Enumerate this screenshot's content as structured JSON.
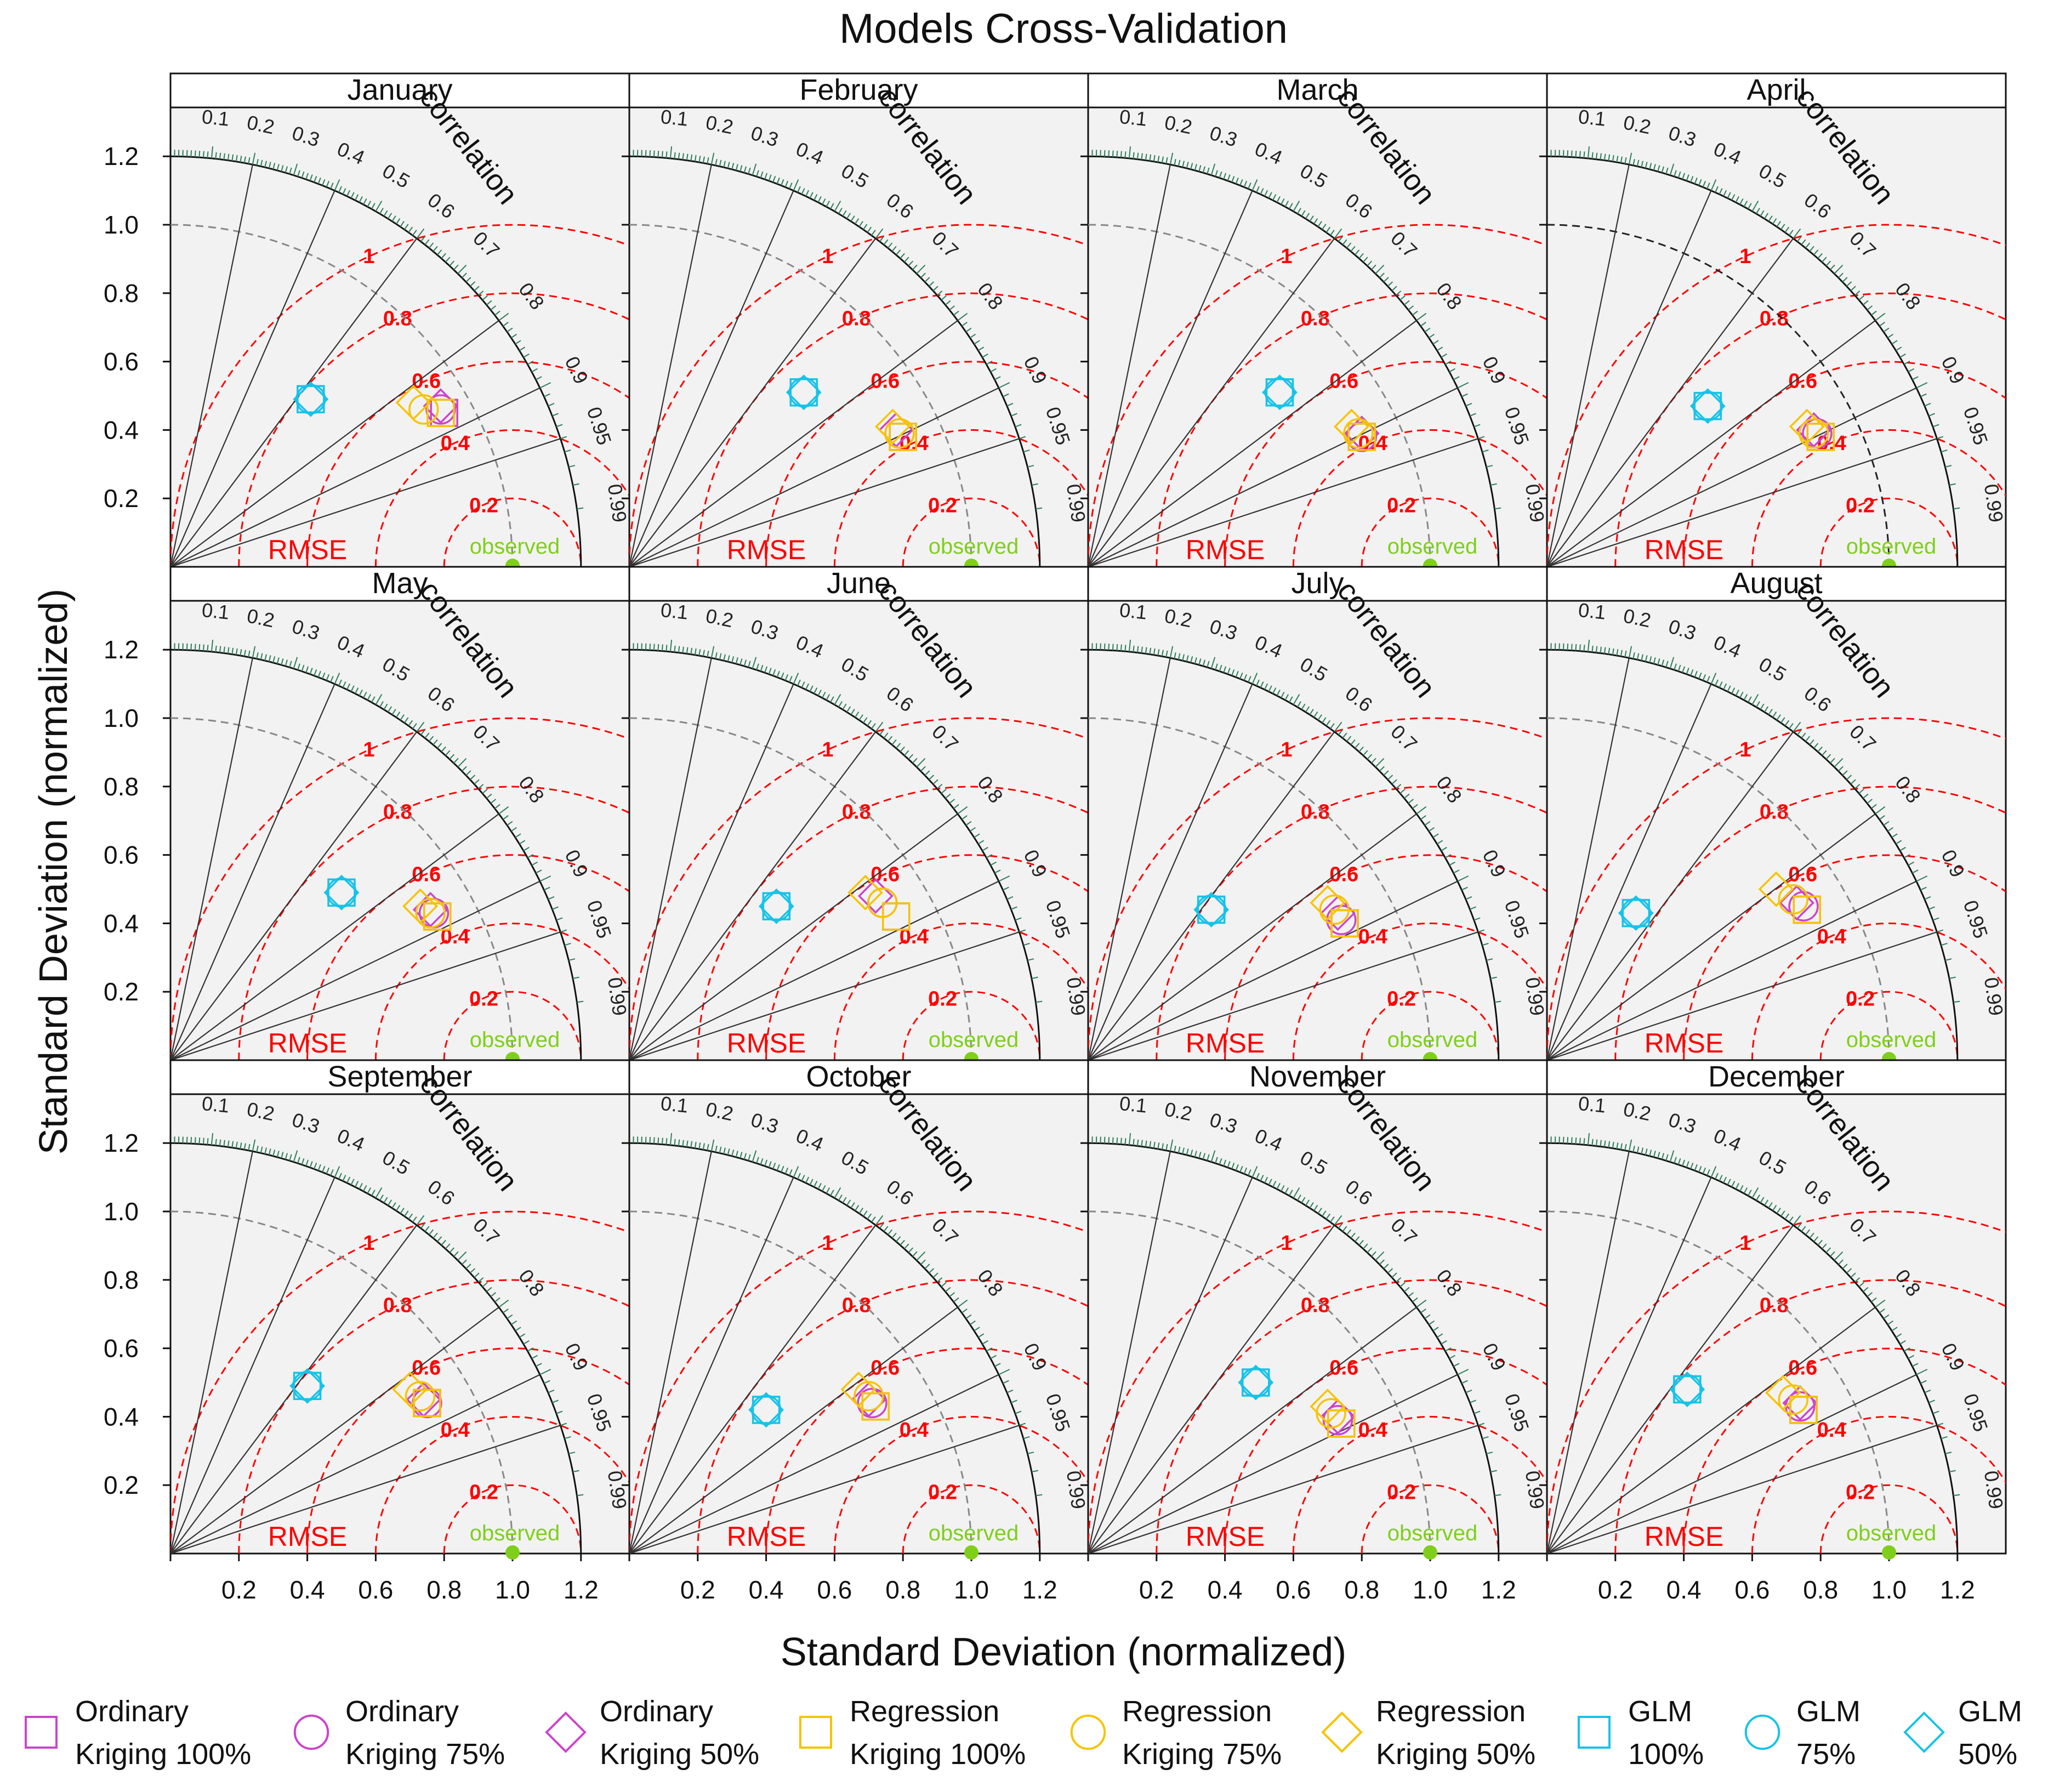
{
  "chart_data": {
    "type": "taylor",
    "title": "Models Cross-Validation",
    "xlabel": "Standard Deviation (normalized)",
    "ylabel": "Standard Deviation (normalized)",
    "xlim": [
      0,
      1.35
    ],
    "ylim": [
      0,
      1.35
    ],
    "x_ticks": [
      "0.2",
      "0.4",
      "0.6",
      "0.8",
      "1.0",
      "1.2"
    ],
    "y_ticks": [
      "0.2",
      "0.4",
      "0.6",
      "0.8",
      "1.0",
      "1.2"
    ],
    "correlation_label": "correlation",
    "correlation_ticks": [
      "0.1",
      "0.2",
      "0.3",
      "0.4",
      "0.5",
      "0.6",
      "0.7",
      "0.8",
      "0.9",
      "0.95",
      "0.99"
    ],
    "rmse_label": "RMSE",
    "rmse_ticks": [
      "0.2",
      "0.4",
      "0.6",
      "0.8",
      "1"
    ],
    "observed_label": "observed",
    "colors": {
      "ordinary": "#cc44cc",
      "regression": "#f5c400",
      "glm": "#17c3e8",
      "rmse": "#ff0000",
      "observed": "#7fcf1a",
      "panel_bg": "#f2f2f2"
    },
    "legend": [
      {
        "line1": "Ordinary",
        "line2": "Kriging 100%",
        "marker": "square",
        "color": "#cc44cc"
      },
      {
        "line1": "Ordinary",
        "line2": "Kriging 75%",
        "marker": "circle",
        "color": "#cc44cc"
      },
      {
        "line1": "Ordinary",
        "line2": "Kriging 50%",
        "marker": "diamond",
        "color": "#cc44cc"
      },
      {
        "line1": "Regression",
        "line2": "Kriging 100%",
        "marker": "square",
        "color": "#f5c400"
      },
      {
        "line1": "Regression",
        "line2": "Kriging 75%",
        "marker": "circle",
        "color": "#f5c400"
      },
      {
        "line1": "Regression",
        "line2": "Kriging 50%",
        "marker": "diamond",
        "color": "#f5c400"
      },
      {
        "line1": "GLM",
        "line2": "100%",
        "marker": "square",
        "color": "#17c3e8"
      },
      {
        "line1": "GLM",
        "line2": "75%",
        "marker": "circle",
        "color": "#17c3e8"
      },
      {
        "line1": "GLM",
        "line2": "50%",
        "marker": "diamond",
        "color": "#17c3e8"
      }
    ],
    "panels": [
      {
        "title": "January",
        "points": [
          [
            0.8,
            0.45
          ],
          [
            0.79,
            0.46
          ],
          [
            0.79,
            0.47
          ],
          [
            0.79,
            0.45
          ],
          [
            0.74,
            0.46
          ],
          [
            0.71,
            0.48
          ],
          [
            0.41,
            0.49
          ],
          [
            0.41,
            0.49
          ],
          [
            0.41,
            0.49
          ]
        ]
      },
      {
        "title": "February",
        "points": [
          [
            0.8,
            0.38
          ],
          [
            0.79,
            0.39
          ],
          [
            0.78,
            0.4
          ],
          [
            0.8,
            0.38
          ],
          [
            0.79,
            0.39
          ],
          [
            0.77,
            0.41
          ],
          [
            0.51,
            0.51
          ],
          [
            0.51,
            0.51
          ],
          [
            0.51,
            0.51
          ]
        ]
      },
      {
        "title": "March",
        "points": [
          [
            0.8,
            0.38
          ],
          [
            0.8,
            0.38
          ],
          [
            0.8,
            0.39
          ],
          [
            0.8,
            0.38
          ],
          [
            0.79,
            0.39
          ],
          [
            0.77,
            0.41
          ],
          [
            0.56,
            0.51
          ],
          [
            0.56,
            0.51
          ],
          [
            0.56,
            0.51
          ]
        ]
      },
      {
        "title": "April",
        "points": [
          [
            0.8,
            0.38
          ],
          [
            0.79,
            0.39
          ],
          [
            0.78,
            0.4
          ],
          [
            0.8,
            0.38
          ],
          [
            0.78,
            0.39
          ],
          [
            0.76,
            0.41
          ],
          [
            0.47,
            0.47
          ],
          [
            0.47,
            0.47
          ],
          [
            0.47,
            0.47
          ]
        ]
      },
      {
        "title": "May",
        "points": [
          [
            0.78,
            0.42
          ],
          [
            0.77,
            0.43
          ],
          [
            0.76,
            0.44
          ],
          [
            0.78,
            0.42
          ],
          [
            0.76,
            0.43
          ],
          [
            0.73,
            0.45
          ],
          [
            0.5,
            0.49
          ],
          [
            0.5,
            0.49
          ],
          [
            0.5,
            0.49
          ]
        ]
      },
      {
        "title": "June",
        "points": [
          [
            0.78,
            0.42
          ],
          [
            0.74,
            0.46
          ],
          [
            0.72,
            0.48
          ],
          [
            0.78,
            0.42
          ],
          [
            0.74,
            0.46
          ],
          [
            0.69,
            0.49
          ],
          [
            0.43,
            0.45
          ],
          [
            0.43,
            0.45
          ],
          [
            0.43,
            0.45
          ]
        ]
      },
      {
        "title": "July",
        "points": [
          [
            0.75,
            0.4
          ],
          [
            0.74,
            0.41
          ],
          [
            0.73,
            0.43
          ],
          [
            0.75,
            0.4
          ],
          [
            0.72,
            0.44
          ],
          [
            0.7,
            0.46
          ],
          [
            0.36,
            0.44
          ],
          [
            0.36,
            0.44
          ],
          [
            0.36,
            0.44
          ]
        ]
      },
      {
        "title": "August",
        "points": [
          [
            0.76,
            0.44
          ],
          [
            0.75,
            0.45
          ],
          [
            0.73,
            0.46
          ],
          [
            0.76,
            0.44
          ],
          [
            0.72,
            0.47
          ],
          [
            0.67,
            0.5
          ],
          [
            0.26,
            0.43
          ],
          [
            0.26,
            0.43
          ],
          [
            0.26,
            0.43
          ]
        ]
      },
      {
        "title": "September",
        "points": [
          [
            0.75,
            0.44
          ],
          [
            0.75,
            0.44
          ],
          [
            0.74,
            0.45
          ],
          [
            0.75,
            0.44
          ],
          [
            0.73,
            0.46
          ],
          [
            0.7,
            0.48
          ],
          [
            0.4,
            0.49
          ],
          [
            0.4,
            0.49
          ],
          [
            0.4,
            0.49
          ]
        ]
      },
      {
        "title": "October",
        "points": [
          [
            0.72,
            0.43
          ],
          [
            0.71,
            0.44
          ],
          [
            0.7,
            0.45
          ],
          [
            0.72,
            0.43
          ],
          [
            0.7,
            0.46
          ],
          [
            0.67,
            0.48
          ],
          [
            0.4,
            0.42
          ],
          [
            0.4,
            0.42
          ],
          [
            0.4,
            0.42
          ]
        ]
      },
      {
        "title": "November",
        "points": [
          [
            0.74,
            0.38
          ],
          [
            0.73,
            0.39
          ],
          [
            0.73,
            0.4
          ],
          [
            0.74,
            0.38
          ],
          [
            0.71,
            0.41
          ],
          [
            0.7,
            0.43
          ],
          [
            0.49,
            0.5
          ],
          [
            0.49,
            0.5
          ],
          [
            0.49,
            0.5
          ]
        ]
      },
      {
        "title": "December",
        "points": [
          [
            0.75,
            0.42
          ],
          [
            0.74,
            0.43
          ],
          [
            0.74,
            0.44
          ],
          [
            0.75,
            0.42
          ],
          [
            0.72,
            0.45
          ],
          [
            0.69,
            0.47
          ],
          [
            0.41,
            0.48
          ],
          [
            0.41,
            0.48
          ],
          [
            0.41,
            0.48
          ]
        ]
      }
    ]
  }
}
